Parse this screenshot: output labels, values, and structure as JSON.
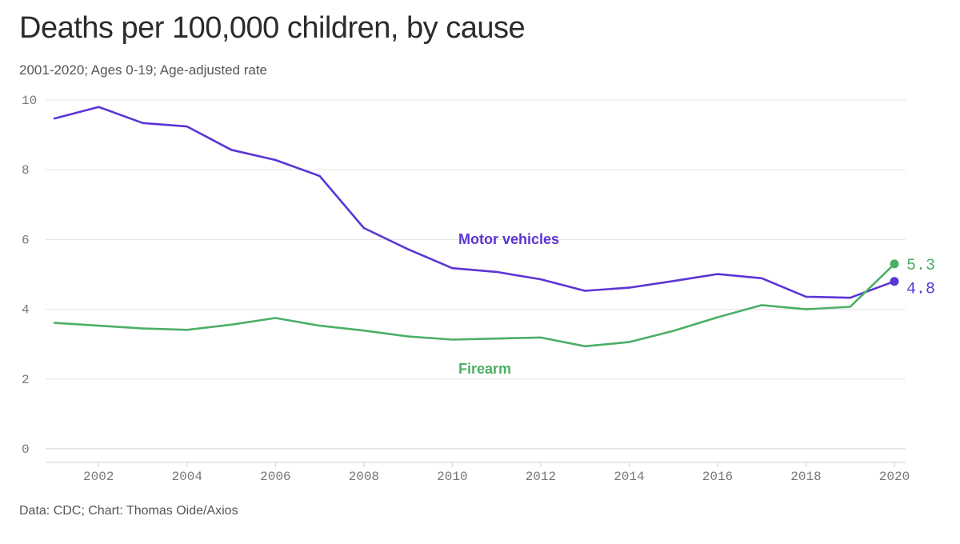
{
  "header": {
    "title": "Deaths per 100,000 children, by cause",
    "subtitle": "2001-2020; Ages 0-19; Age-adjusted rate"
  },
  "footer": {
    "source": "Data: CDC; Chart: Thomas Oide/Axios"
  },
  "chart_data": {
    "type": "line",
    "title": "Deaths per 100,000 children, by cause",
    "subtitle": "2001-2020; Ages 0-19; Age-adjusted rate",
    "xlabel": "",
    "ylabel": "",
    "xlim": [
      2001,
      2020
    ],
    "ylim": [
      0,
      10
    ],
    "x_ticks": [
      2002,
      2004,
      2006,
      2008,
      2010,
      2012,
      2014,
      2016,
      2018,
      2020
    ],
    "y_ticks": [
      0,
      2,
      4,
      6,
      8,
      10
    ],
    "grid": "horizontal",
    "legend": "inline labels",
    "x": [
      2001,
      2002,
      2003,
      2004,
      2005,
      2006,
      2007,
      2008,
      2009,
      2010,
      2011,
      2012,
      2013,
      2014,
      2015,
      2016,
      2017,
      2018,
      2019,
      2020
    ],
    "series": [
      {
        "name": "Motor vehicles",
        "color": "#5b35d5",
        "values": [
          9.47,
          9.8,
          9.34,
          9.24,
          8.57,
          8.28,
          7.82,
          6.33,
          5.72,
          5.18,
          5.07,
          4.86,
          4.53,
          4.62,
          4.81,
          5.01,
          4.89,
          4.36,
          4.33,
          4.8
        ],
        "end_label": "4.8"
      },
      {
        "name": "Firearm",
        "color": "#4caf66",
        "values": [
          3.61,
          3.53,
          3.45,
          3.41,
          3.56,
          3.75,
          3.53,
          3.39,
          3.22,
          3.13,
          3.16,
          3.19,
          2.94,
          3.06,
          3.38,
          3.77,
          4.12,
          4.0,
          4.07,
          5.3
        ],
        "end_label": "5.3"
      }
    ]
  }
}
